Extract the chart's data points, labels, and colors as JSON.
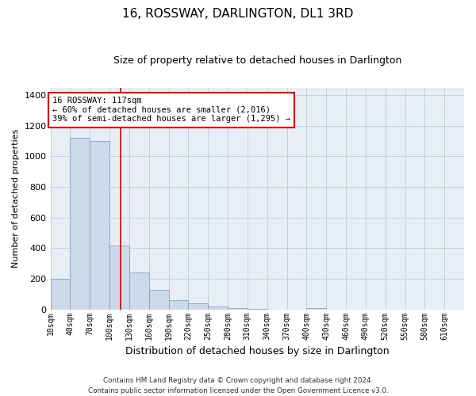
{
  "title": "16, ROSSWAY, DARLINGTON, DL1 3RD",
  "subtitle": "Size of property relative to detached houses in Darlington",
  "xlabel": "Distribution of detached houses by size in Darlington",
  "ylabel": "Number of detached properties",
  "bar_color": "#ccd9e8",
  "bar_edge_color": "#7799bb",
  "annotation_box_color": "#cc0000",
  "property_line_color": "#cc0000",
  "property_sqm": 117,
  "annotation_text": "16 ROSSWAY: 117sqm\n← 60% of detached houses are smaller (2,016)\n39% of semi-detached houses are larger (1,295) →",
  "footer_line1": "Contains HM Land Registry data © Crown copyright and database right 2024.",
  "footer_line2": "Contains public sector information licensed under the Open Government Licence v3.0.",
  "categories": [
    "10sqm",
    "40sqm",
    "70sqm",
    "100sqm",
    "130sqm",
    "160sqm",
    "190sqm",
    "220sqm",
    "250sqm",
    "280sqm",
    "310sqm",
    "340sqm",
    "370sqm",
    "400sqm",
    "430sqm",
    "460sqm",
    "490sqm",
    "520sqm",
    "550sqm",
    "580sqm",
    "610sqm"
  ],
  "bin_starts": [
    10,
    40,
    70,
    100,
    130,
    160,
    190,
    220,
    250,
    280,
    310,
    340,
    370,
    400,
    430,
    460,
    490,
    520,
    550,
    580,
    610
  ],
  "bar_heights": [
    200,
    1120,
    1100,
    420,
    240,
    130,
    60,
    40,
    20,
    8,
    3,
    0,
    0,
    10,
    0,
    0,
    0,
    0,
    0,
    0,
    0
  ],
  "bin_width": 30,
  "ylim": [
    0,
    1450
  ],
  "yticks": [
    0,
    200,
    400,
    600,
    800,
    1000,
    1200,
    1400
  ],
  "grid_color": "#c0ccdd",
  "background_color": "#e8eef5",
  "title_fontsize": 11,
  "subtitle_fontsize": 9
}
